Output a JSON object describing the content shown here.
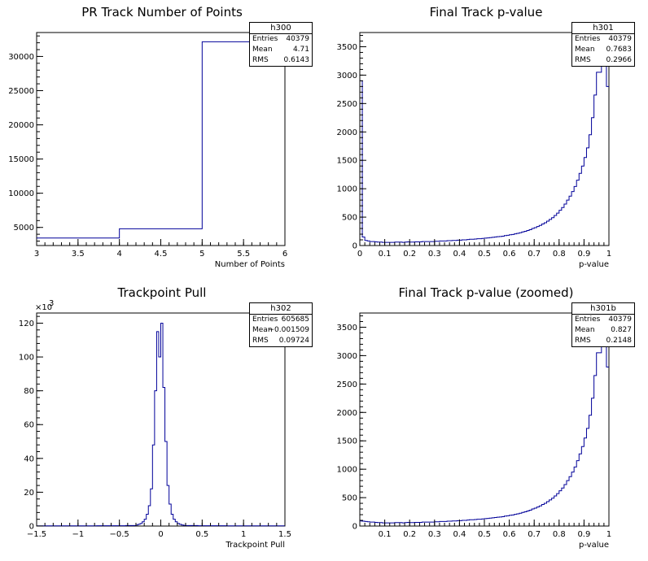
{
  "chart_data": [
    {
      "type": "histogram",
      "title": "PR Track Number of Points",
      "xlabel": "Number of Points",
      "ylabel": "",
      "xlim": [
        3,
        6
      ],
      "ylim": [
        2350,
        33500
      ],
      "xticks": [
        "3",
        "3.5",
        "4",
        "4.5",
        "5",
        "5.5",
        "6"
      ],
      "yticks": [
        "5000",
        "10000",
        "15000",
        "20000",
        "25000",
        "30000"
      ],
      "bins": [
        {
          "lo": 3,
          "hi": 4,
          "count": 3450
        },
        {
          "lo": 4,
          "hi": 5,
          "count": 4800
        },
        {
          "lo": 5,
          "hi": 6,
          "count": 32150
        }
      ],
      "stats": {
        "name": "h300",
        "entries": "40379",
        "mean": "4.71",
        "rms": "0.6143"
      }
    },
    {
      "type": "histogram",
      "title": "Final Track p-value",
      "xlabel": "p-value",
      "ylabel": "",
      "xlim": [
        0,
        1
      ],
      "ylim": [
        0,
        3750
      ],
      "xticks": [
        "0",
        "0.1",
        "0.2",
        "0.3",
        "0.4",
        "0.5",
        "0.6",
        "0.7",
        "0.8",
        "0.9",
        "1"
      ],
      "yticks": [
        "0",
        "500",
        "1000",
        "1500",
        "2000",
        "2500",
        "3000",
        "3500"
      ],
      "bin_width": 0.01,
      "counts": [
        2900,
        150,
        90,
        80,
        70,
        70,
        65,
        60,
        60,
        55,
        55,
        55,
        55,
        55,
        60,
        60,
        60,
        55,
        60,
        65,
        60,
        60,
        65,
        65,
        65,
        70,
        70,
        70,
        70,
        70,
        75,
        75,
        80,
        80,
        80,
        85,
        85,
        90,
        90,
        95,
        95,
        100,
        100,
        105,
        110,
        110,
        115,
        120,
        120,
        125,
        130,
        135,
        140,
        145,
        150,
        155,
        160,
        165,
        175,
        180,
        190,
        195,
        205,
        215,
        225,
        240,
        250,
        265,
        280,
        300,
        315,
        335,
        355,
        380,
        400,
        430,
        460,
        490,
        530,
        570,
        620,
        670,
        730,
        800,
        870,
        950,
        1040,
        1150,
        1270,
        1400,
        1550,
        1720,
        1950,
        2250,
        2650,
        3050,
        3050,
        3200,
        3250,
        2800
      ],
      "stats": {
        "name": "h301",
        "entries": "40379",
        "mean": "0.7683",
        "rms": "0.2966"
      }
    },
    {
      "type": "histogram",
      "title": "Trackpoint Pull",
      "xlabel": "Trackpoint Pull",
      "ylabel": "",
      "y_multiplier": "×10",
      "y_exponent": "3",
      "xlim": [
        -1.5,
        1.5
      ],
      "ylim": [
        0,
        126
      ],
      "xticks": [
        "−1.5",
        "−1",
        "−0.5",
        "0",
        "0.5",
        "1",
        "1.5"
      ],
      "yticks": [
        "0",
        "20",
        "40",
        "60",
        "80",
        "100",
        "120"
      ],
      "bin_width": 0.025,
      "x_start": -0.3,
      "counts": [
        0.6,
        1.0,
        1.5,
        2.5,
        4.0,
        7.0,
        12.0,
        22.0,
        48.0,
        80.0,
        115.0,
        100.0,
        120.0,
        82.0,
        50.0,
        24.0,
        13.0,
        7.0,
        4.0,
        2.5,
        1.5,
        1.0,
        0.6,
        0.4
      ],
      "tail_counts_left": [
        0.1,
        0.2,
        0.3
      ],
      "stats": {
        "name": "h302",
        "entries": "605685",
        "mean": "−0.001509",
        "rms": "0.09724"
      }
    },
    {
      "type": "histogram",
      "title": "Final Track p-value (zoomed)",
      "xlabel": "p-value",
      "ylabel": "",
      "xlim": [
        0,
        1
      ],
      "ylim": [
        0,
        3750
      ],
      "xticks": [
        "0.1",
        "0.2",
        "0.3",
        "0.4",
        "0.5",
        "0.6",
        "0.7",
        "0.8",
        "0.9",
        "1"
      ],
      "yticks": [
        "0",
        "500",
        "1000",
        "1500",
        "2000",
        "2500",
        "3000",
        "3500"
      ],
      "bin_width": 0.01,
      "counts": [
        90,
        85,
        80,
        75,
        70,
        70,
        65,
        60,
        60,
        55,
        55,
        55,
        55,
        55,
        60,
        60,
        60,
        55,
        60,
        65,
        60,
        60,
        65,
        65,
        65,
        70,
        70,
        70,
        70,
        70,
        75,
        75,
        80,
        80,
        80,
        85,
        85,
        90,
        90,
        95,
        95,
        100,
        100,
        105,
        110,
        110,
        115,
        120,
        120,
        125,
        130,
        135,
        140,
        145,
        150,
        155,
        160,
        165,
        175,
        180,
        190,
        195,
        205,
        215,
        225,
        240,
        250,
        265,
        280,
        300,
        315,
        335,
        355,
        380,
        400,
        430,
        460,
        490,
        530,
        570,
        620,
        670,
        730,
        800,
        870,
        950,
        1040,
        1150,
        1270,
        1400,
        1550,
        1720,
        1950,
        2250,
        2650,
        3050,
        3050,
        3200,
        3250,
        2800
      ],
      "stats": {
        "name": "h301b",
        "entries": "40379",
        "mean": "0.827",
        "rms": "0.2148"
      }
    }
  ],
  "labels": {
    "entries": "Entries",
    "mean": "Mean",
    "rms": "RMS"
  },
  "line_color": "#000099",
  "colors": {
    "axis": "#000000",
    "background": "#ffffff"
  }
}
